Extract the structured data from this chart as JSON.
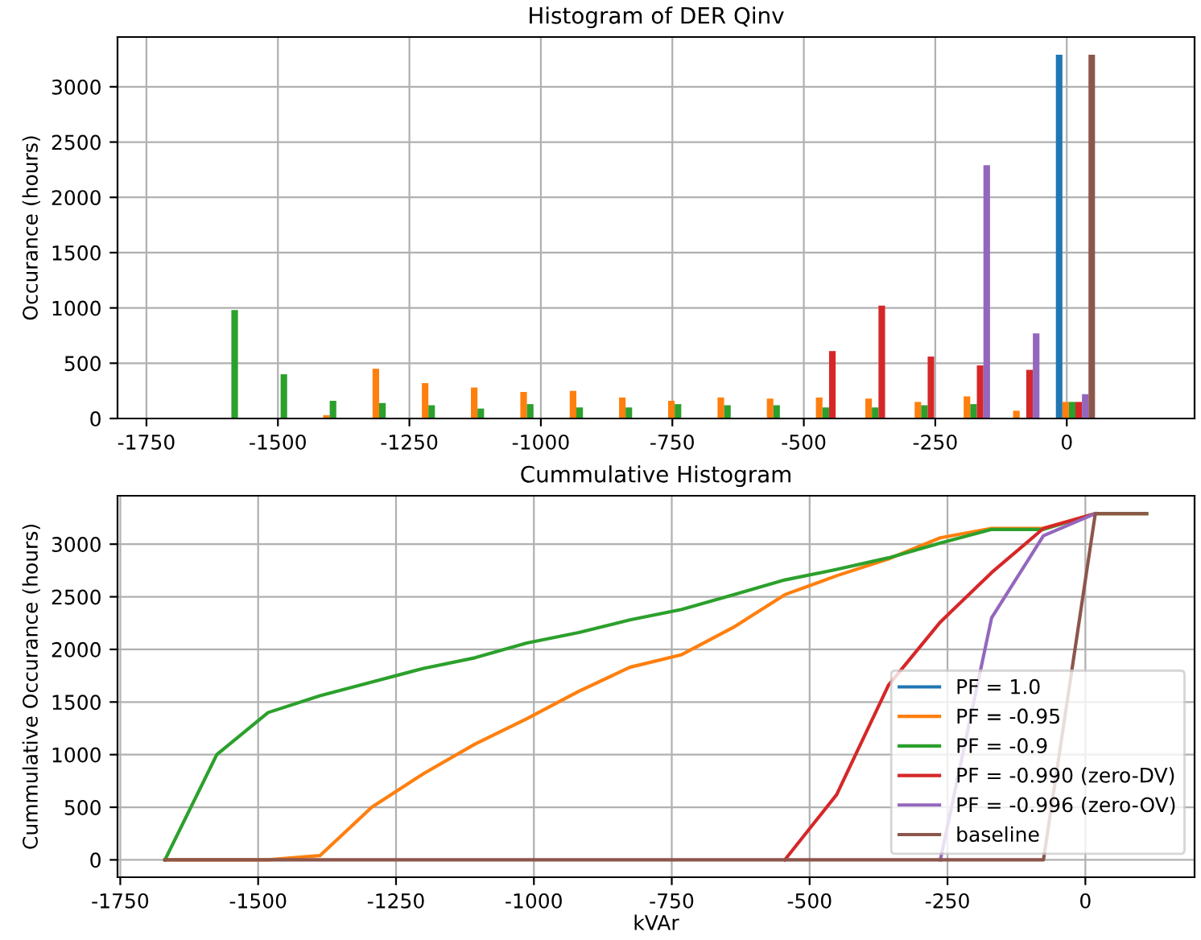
{
  "chart_data": [
    {
      "type": "histogram",
      "title": "Histogram of DER Qinv",
      "ylabel": "Occurance (hours)",
      "bins": [
        -1623,
        -1529,
        -1436,
        -1342,
        -1248,
        -1155,
        -1061,
        -967,
        -873,
        -780,
        -686,
        -592,
        -499,
        -405,
        -311,
        -218,
        -124,
        -30,
        63
      ],
      "series": [
        {
          "color": "#1f77b4",
          "values": [
            0,
            0,
            0,
            0,
            0,
            0,
            0,
            0,
            0,
            0,
            0,
            0,
            0,
            0,
            0,
            0,
            0,
            3290
          ]
        },
        {
          "color": "#ff7f0e",
          "values": [
            0,
            0,
            30,
            450,
            320,
            280,
            240,
            250,
            190,
            160,
            190,
            180,
            190,
            180,
            150,
            200,
            70,
            150
          ]
        },
        {
          "color": "#2ca02c",
          "values": [
            980,
            400,
            160,
            140,
            120,
            90,
            130,
            100,
            100,
            130,
            120,
            120,
            100,
            100,
            120,
            130,
            0,
            150
          ]
        },
        {
          "color": "#d62728",
          "values": [
            0,
            0,
            0,
            0,
            0,
            0,
            0,
            0,
            0,
            0,
            0,
            0,
            610,
            1020,
            560,
            480,
            440,
            150
          ]
        },
        {
          "color": "#9467bd",
          "values": [
            0,
            0,
            0,
            0,
            0,
            0,
            0,
            0,
            0,
            0,
            0,
            0,
            0,
            0,
            0,
            2290,
            770,
            220
          ]
        },
        {
          "color": "#8c564b",
          "values": [
            0,
            0,
            0,
            0,
            0,
            0,
            0,
            0,
            0,
            0,
            0,
            0,
            0,
            0,
            0,
            0,
            0,
            3290
          ]
        }
      ],
      "xlim": [
        -1805,
        243
      ],
      "ylim": [
        0,
        3450
      ],
      "xticks": [
        -1750,
        -1500,
        -1250,
        -1000,
        -750,
        -500,
        -250,
        0
      ],
      "yticks": [
        0,
        500,
        1000,
        1500,
        2000,
        2500,
        3000
      ],
      "grid": true
    },
    {
      "type": "line",
      "title": "Cummulative Histogram",
      "xlabel": "kVAr",
      "ylabel": "Cummulative Occurance (hours)",
      "x": [
        -1669,
        -1575,
        -1482,
        -1388,
        -1294,
        -1200,
        -1107,
        -1013,
        -919,
        -826,
        -732,
        -638,
        -545,
        -451,
        -357,
        -263,
        -170,
        -76,
        18,
        111
      ],
      "series": [
        {
          "name": "PF = 1.0",
          "color": "#1f77b4",
          "values": [
            null,
            null,
            null,
            null,
            null,
            null,
            null,
            null,
            null,
            null,
            null,
            null,
            null,
            null,
            null,
            null,
            null,
            null,
            null,
            null
          ]
        },
        {
          "name": "PF = -0.95",
          "color": "#ff7f0e",
          "values": [
            0,
            0,
            0,
            40,
            500,
            820,
            1100,
            1340,
            1600,
            1830,
            1950,
            2210,
            2520,
            2700,
            2860,
            3060,
            3150,
            3150,
            3290,
            3290
          ]
        },
        {
          "name": "PF = -0.9",
          "color": "#2ca02c",
          "values": [
            0,
            1000,
            1400,
            1560,
            1690,
            1820,
            1920,
            2060,
            2160,
            2280,
            2380,
            2520,
            2660,
            2760,
            2870,
            3010,
            3140,
            3140,
            3290,
            3290
          ]
        },
        {
          "name": "PF = -0.990 (zero-DV)",
          "color": "#d62728",
          "values": [
            null,
            null,
            null,
            null,
            null,
            null,
            null,
            null,
            null,
            null,
            null,
            null,
            0,
            620,
            1660,
            2260,
            2730,
            3150,
            3290,
            null
          ]
        },
        {
          "name": "PF = -0.996 (zero-OV)",
          "color": "#9467bd",
          "values": [
            null,
            null,
            null,
            null,
            null,
            null,
            null,
            null,
            null,
            null,
            null,
            null,
            null,
            null,
            null,
            0,
            2300,
            3080,
            3290,
            null
          ]
        },
        {
          "name": "baseline",
          "color": "#8c564b",
          "values": [
            0,
            0,
            0,
            0,
            0,
            0,
            0,
            0,
            0,
            0,
            0,
            0,
            0,
            0,
            0,
            0,
            0,
            0,
            3290,
            3290
          ]
        }
      ],
      "xlim": [
        -1755,
        198
      ],
      "ylim": [
        -165,
        3460
      ],
      "xticks": [
        -1750,
        -1500,
        -1250,
        -1000,
        -750,
        -500,
        -250,
        0
      ],
      "yticks": [
        0,
        500,
        1000,
        1500,
        2000,
        2500,
        3000
      ],
      "grid": true,
      "legend": "bottom right"
    }
  ]
}
